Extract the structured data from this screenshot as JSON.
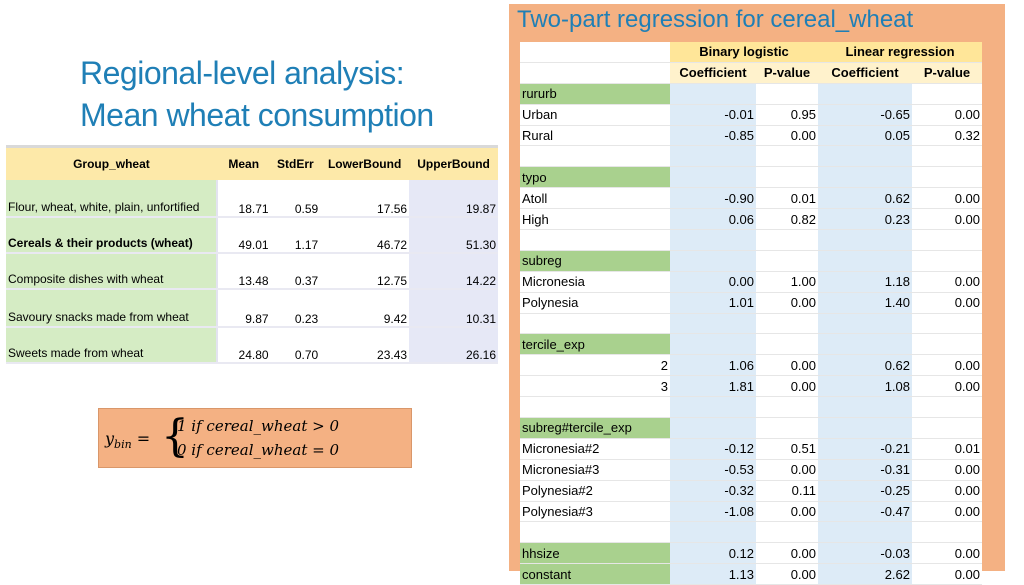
{
  "left": {
    "title_line1": "Regional-level analysis:",
    "title_line2": "Mean wheat consumption",
    "headers": [
      "Group_wheat",
      "Mean",
      "StdErr",
      "LowerBound",
      "UpperBound"
    ],
    "rows": [
      {
        "group": "Flour, wheat, white, plain, unfortified",
        "mean": "18.71",
        "stderr": "0.59",
        "lower": "17.56",
        "upper": "19.87"
      },
      {
        "group": "Cereals & their products (wheat)",
        "mean": "49.01",
        "stderr": "1.17",
        "lower": "46.72",
        "upper": "51.30"
      },
      {
        "group": "Composite dishes with wheat",
        "mean": "13.48",
        "stderr": "0.37",
        "lower": "12.75",
        "upper": "14.22"
      },
      {
        "group": "Savoury snacks made from wheat",
        "mean": "9.87",
        "stderr": "0.23",
        "lower": "9.42",
        "upper": "10.31"
      },
      {
        "group": "Sweets made from wheat",
        "mean": "24.80",
        "stderr": "0.70",
        "lower": "23.43",
        "upper": "26.16"
      }
    ],
    "formula": {
      "lhs": "y",
      "lhs_sub": "bin",
      "equals": "=",
      "line1": "1    if cereal_wheat > 0",
      "line2": "0   if cereal_wheat = 0"
    }
  },
  "right": {
    "title": "Two-part regression for cereal_wheat",
    "group_headers": [
      "Binary logistic",
      "Linear regression"
    ],
    "col_headers": [
      "Coefficient",
      "P-value",
      "Coefficient",
      "P-value"
    ],
    "rows": [
      {
        "label": "",
        "c1": "",
        "p1": "",
        "c2": "",
        "p2": ""
      },
      {
        "label": "rururb",
        "section": true,
        "c1": "",
        "p1": "",
        "c2": "",
        "p2": ""
      },
      {
        "label": "Urban",
        "c1": "-0.01",
        "p1": "0.95",
        "c2": "-0.65",
        "p2": "0.00"
      },
      {
        "label": "Rural",
        "c1": "-0.85",
        "p1": "0.00",
        "c2": "0.05",
        "p2": "0.32"
      },
      {
        "label": "",
        "c1": "",
        "p1": "",
        "c2": "",
        "p2": ""
      },
      {
        "label": "typo",
        "section": true,
        "c1": "",
        "p1": "",
        "c2": "",
        "p2": ""
      },
      {
        "label": "Atoll",
        "c1": "-0.90",
        "p1": "0.01",
        "c2": "0.62",
        "p2": "0.00"
      },
      {
        "label": "High",
        "c1": "0.06",
        "p1": "0.82",
        "c2": "0.23",
        "p2": "0.00"
      },
      {
        "label": "",
        "c1": "",
        "p1": "",
        "c2": "",
        "p2": ""
      },
      {
        "label": "subreg",
        "section": true,
        "c1": "",
        "p1": "",
        "c2": "",
        "p2": ""
      },
      {
        "label": "Micronesia",
        "c1": "0.00",
        "p1": "1.00",
        "c2": "1.18",
        "p2": "0.00"
      },
      {
        "label": "Polynesia",
        "c1": "1.01",
        "p1": "0.00",
        "c2": "1.40",
        "p2": "0.00"
      },
      {
        "label": "",
        "c1": "",
        "p1": "",
        "c2": "",
        "p2": ""
      },
      {
        "label": "tercile_exp",
        "section": true,
        "c1": "",
        "p1": "",
        "c2": "",
        "p2": ""
      },
      {
        "label": "2",
        "right_label": true,
        "c1": "1.06",
        "p1": "0.00",
        "c2": "0.62",
        "p2": "0.00"
      },
      {
        "label": "3",
        "right_label": true,
        "c1": "1.81",
        "p1": "0.00",
        "c2": "1.08",
        "p2": "0.00"
      },
      {
        "label": "",
        "c1": "",
        "p1": "",
        "c2": "",
        "p2": ""
      },
      {
        "label": "subreg#tercile_exp",
        "section": true,
        "c1": "",
        "p1": "",
        "c2": "",
        "p2": ""
      },
      {
        "label": "Micronesia#2",
        "c1": "-0.12",
        "p1": "0.51",
        "c2": "-0.21",
        "p2": "0.01"
      },
      {
        "label": "Micronesia#3",
        "c1": "-0.53",
        "p1": "0.00",
        "c2": "-0.31",
        "p2": "0.00"
      },
      {
        "label": "Polynesia#2",
        "c1": "-0.32",
        "p1": "0.11",
        "c2": "-0.25",
        "p2": "0.00"
      },
      {
        "label": "Polynesia#3",
        "c1": "-1.08",
        "p1": "0.00",
        "c2": "-0.47",
        "p2": "0.00"
      },
      {
        "label": "",
        "c1": "",
        "p1": "",
        "c2": "",
        "p2": ""
      },
      {
        "label": "hhsize",
        "section": true,
        "c1": "0.12",
        "p1": "0.00",
        "c2": "-0.03",
        "p2": "0.00"
      },
      {
        "label": "constant",
        "section": true,
        "c1": "1.13",
        "p1": "0.00",
        "c2": "2.62",
        "p2": "0.00"
      }
    ]
  },
  "colors": {
    "title_blue": "#1f7fb6",
    "orange_panel": "#f4b183",
    "green_cell": "#a9d18e",
    "light_green_cell": "#d5ecc4",
    "yellow_header": "#ffe699",
    "blue_cell": "#ddebf7"
  }
}
